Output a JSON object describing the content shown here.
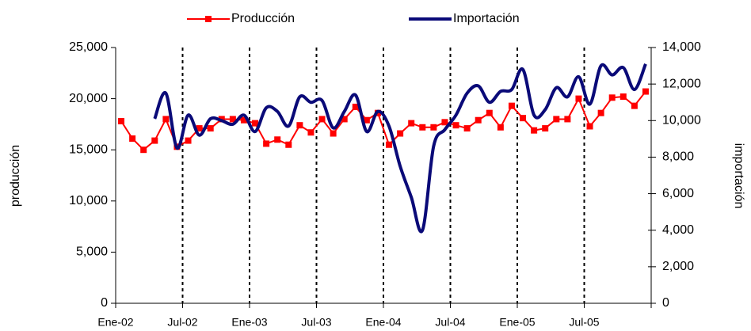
{
  "chart_data": {
    "type": "line",
    "y_label": "producción",
    "y2_label": "importación",
    "categories": [
      "Ene-02",
      null,
      null,
      null,
      null,
      null,
      "Jul-02",
      null,
      null,
      null,
      null,
      null,
      "Ene-03",
      null,
      null,
      null,
      null,
      null,
      "Jul-03",
      null,
      null,
      null,
      null,
      null,
      "Ene-04",
      null,
      null,
      null,
      null,
      null,
      "Jul-04",
      null,
      null,
      null,
      null,
      null,
      "Ene-05",
      null,
      null,
      null,
      null,
      null,
      "Jul-05",
      null,
      null,
      null,
      null,
      null
    ],
    "series": [
      {
        "name": "Producción",
        "color": "#ff0000",
        "marker": "square",
        "values": [
          17800,
          16100,
          15000,
          15900,
          18000,
          15300,
          15900,
          17100,
          17100,
          18000,
          18000,
          17900,
          17600,
          15600,
          16000,
          15500,
          17400,
          16700,
          18000,
          16600,
          18000,
          19200,
          17900,
          18600,
          15500,
          16600,
          17600,
          17200,
          17200,
          17700,
          17400,
          17100,
          17900,
          18600,
          17200,
          19300,
          18100,
          16900,
          17100,
          18000,
          18000,
          20000,
          17300,
          18600,
          20100,
          20200,
          19300,
          20700
        ]
      },
      {
        "name": "Importación",
        "color": "#0a0a78",
        "axis": "y2",
        "smooth": true,
        "values": [
          null,
          null,
          null,
          10100,
          11500,
          8500,
          10300,
          9200,
          10100,
          10000,
          9800,
          10300,
          9400,
          10700,
          10500,
          9700,
          11300,
          11000,
          11100,
          9600,
          10500,
          11400,
          9400,
          10500,
          9700,
          7500,
          5800,
          4000,
          8600,
          9500,
          10300,
          11500,
          11900,
          11000,
          11600,
          11700,
          12800,
          10300,
          10600,
          11800,
          11300,
          12400,
          10900,
          13000,
          12500,
          12900,
          11700,
          13100
        ]
      }
    ],
    "ylim": [
      0,
      25000
    ],
    "yticks": [
      0,
      {
        "value": 5000,
        "label": "5,000"
      },
      {
        "value": 10000,
        "label": "10,000"
      },
      {
        "value": 15000,
        "label": "15,000"
      },
      {
        "value": 20000,
        "label": "20,000"
      },
      {
        "value": 25000,
        "label": "25,000"
      }
    ],
    "y2lim": [
      0,
      14000
    ],
    "y2ticks": [
      0,
      {
        "value": 2000,
        "label": "2,000"
      },
      {
        "value": 4000,
        "label": "4,000"
      },
      {
        "value": 6000,
        "label": "6,000"
      },
      {
        "value": 8000,
        "label": "8,000"
      },
      {
        "value": 10000,
        "label": "10,000"
      },
      {
        "value": 12000,
        "label": "12,000"
      },
      {
        "value": 14000,
        "label": "14,000"
      }
    ],
    "grid": "dashed-vertical",
    "legend": "top"
  }
}
